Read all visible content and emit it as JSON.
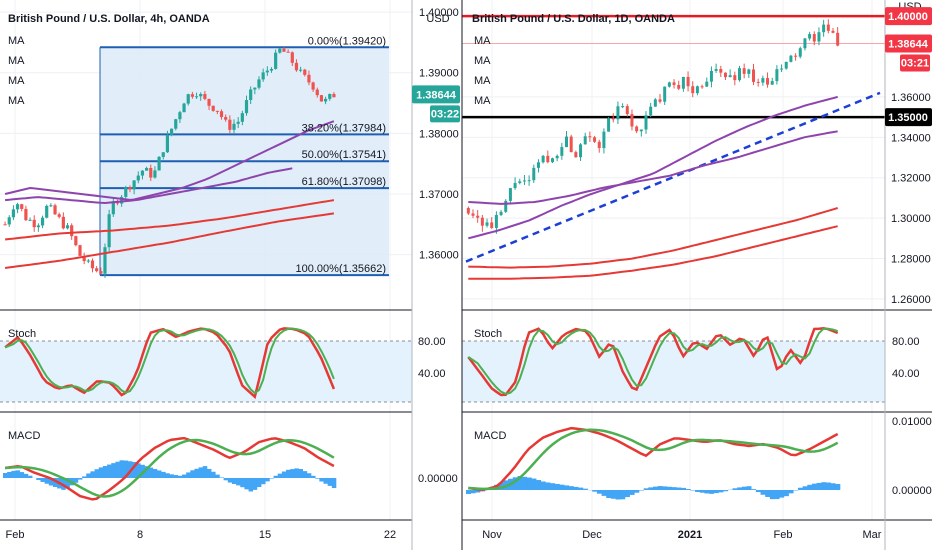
{
  "left_chart": {
    "title": "British Pound / U.S. Dollar, 4h, OANDA",
    "currency": "USD",
    "ma_labels": [
      "MA",
      "MA",
      "MA",
      "MA"
    ],
    "price_badge": "1.38644",
    "timer_badge": "03:22",
    "price_ticks": [
      "1.40000",
      "1.39000",
      "1.38000",
      "1.37000",
      "1.36000"
    ],
    "x_ticks": [
      "Feb",
      "8",
      "15",
      "22"
    ],
    "fib_levels": [
      {
        "label": "0.00%(1.39420)",
        "price": 1.3942
      },
      {
        "label": "38.20%(1.37984)",
        "price": 1.37984
      },
      {
        "label": "50.00%(1.37541)",
        "price": 1.37541
      },
      {
        "label": "61.80%(1.37098)",
        "price": 1.37098
      },
      {
        "label": "100.00%(1.35662)",
        "price": 1.35662
      }
    ],
    "stoch_title": "Stoch",
    "stoch_ticks": [
      "80.00",
      "40.00"
    ],
    "macd_title": "MACD",
    "macd_ticks": [
      "0.00000"
    ]
  },
  "right_chart": {
    "title": "British Pound / U.S. Dollar, 1D, OANDA",
    "currency": "USD",
    "ma_labels": [
      "MA",
      "MA",
      "MA",
      "MA"
    ],
    "price_badge": "1.38644",
    "timer_badge": "03:21",
    "level_badges": [
      "1.40000",
      "1.35000"
    ],
    "price_ticks": [
      "1.36000",
      "1.34000",
      "1.32000",
      "1.30000",
      "1.28000",
      "1.26000"
    ],
    "x_ticks": [
      "Nov",
      "Dec",
      "2021",
      "Feb",
      "Mar"
    ],
    "stoch_title": "Stoch",
    "stoch_ticks": [
      "80.00",
      "40.00"
    ],
    "macd_title": "MACD",
    "macd_ticks": [
      "0.01000",
      "0.00000"
    ]
  },
  "colors": {
    "up": "#26a69a",
    "down": "#ef5350",
    "fib_line": "#1e5fb4",
    "fib_fill": "#dcebf8",
    "ma_purple": "#8e44ad",
    "ma_red": "#e53935",
    "trend_blue": "#1c3fd6",
    "stoch_k": "#e53935",
    "stoch_d": "#4caf50",
    "macd_hist": "#42a5f5",
    "band_fill": "#e3f2fd",
    "grid": "#eef0f3",
    "badge_teal": "#26a69a",
    "badge_red": "#f23645",
    "badge_black": "#000000"
  },
  "chart_data": [
    {
      "type": "candlestick",
      "title": "British Pound / U.S. Dollar, 4h, OANDA",
      "x_ticks": [
        "Feb",
        "8",
        "15",
        "22"
      ],
      "ylim": [
        1.3545,
        1.4015
      ],
      "close_last": 1.38644,
      "closes_approx": [
        1.364,
        1.368,
        1.366,
        1.365,
        1.37,
        1.368,
        1.367,
        1.364,
        1.363,
        1.36,
        1.363,
        1.362,
        1.358,
        1.357,
        1.37,
        1.372,
        1.373,
        1.375,
        1.374,
        1.377,
        1.38,
        1.382,
        1.385,
        1.387,
        1.386,
        1.385,
        1.384,
        1.382,
        1.381,
        1.38,
        1.383,
        1.387,
        1.388,
        1.39,
        1.392,
        1.394,
        1.392,
        1.39,
        1.388,
        1.386,
        1.385,
        1.3864
      ],
      "fibonacci": [
        {
          "level": "0.00%",
          "price": 1.3942
        },
        {
          "level": "38.20%",
          "price": 1.37984
        },
        {
          "level": "50.00%",
          "price": 1.37541
        },
        {
          "level": "61.80%",
          "price": 1.37098
        },
        {
          "level": "100.00%",
          "price": 1.35662
        }
      ]
    },
    {
      "type": "candlestick",
      "title": "British Pound / U.S. Dollar, 1D, OANDA",
      "x_ticks": [
        "Nov",
        "Dec",
        "2021",
        "Feb",
        "Mar"
      ],
      "ylim": [
        1.2555,
        1.4065
      ],
      "close_last": 1.38644,
      "closes_approx": [
        1.305,
        1.3,
        1.295,
        1.298,
        1.31,
        1.32,
        1.315,
        1.325,
        1.33,
        1.335,
        1.332,
        1.34,
        1.335,
        1.33,
        1.34,
        1.345,
        1.35,
        1.342,
        1.345,
        1.355,
        1.36,
        1.365,
        1.362,
        1.368,
        1.37,
        1.372,
        1.368,
        1.365,
        1.37,
        1.372,
        1.374,
        1.37,
        1.365,
        1.372,
        1.38,
        1.385,
        1.3864
      ],
      "horizontal_levels": [
        1.4,
        1.35
      ]
    }
  ]
}
